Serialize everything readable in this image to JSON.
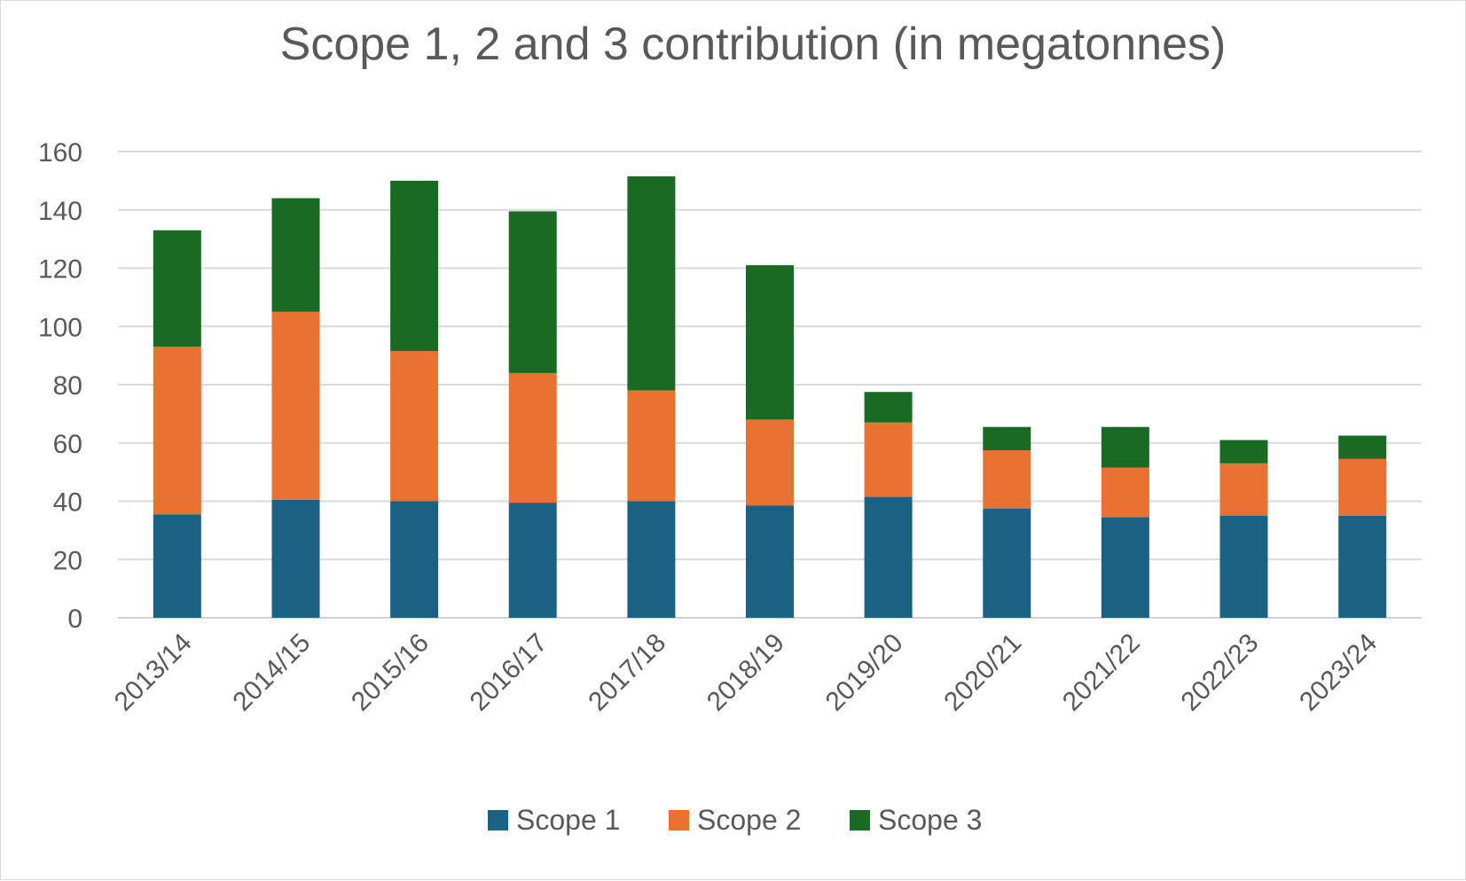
{
  "chart_data": {
    "type": "bar",
    "stacked": true,
    "title": "Scope 1, 2 and 3 contribution (in megatonnes)",
    "xlabel": "",
    "ylabel": "",
    "ylim": [
      0,
      160
    ],
    "yticks": [
      0,
      20,
      40,
      60,
      80,
      100,
      120,
      140,
      160
    ],
    "grid": true,
    "legend_position": "bottom",
    "categories": [
      "2013/14",
      "2014/15",
      "2015/16",
      "2016/17",
      "2017/18",
      "2018/19",
      "2019/20",
      "2020/21",
      "2021/22",
      "2022/23",
      "2023/24"
    ],
    "series": [
      {
        "name": "Scope 1",
        "color": "#1a6184",
        "values": [
          35.5,
          40.5,
          40.0,
          39.5,
          40.0,
          38.5,
          41.5,
          37.5,
          34.5,
          35.0,
          35.0
        ]
      },
      {
        "name": "Scope 2",
        "color": "#e97132",
        "values": [
          57.5,
          64.5,
          51.5,
          44.5,
          38.0,
          29.5,
          25.5,
          20.0,
          17.0,
          18.0,
          19.5
        ]
      },
      {
        "name": "Scope 3",
        "color": "#196b24",
        "values": [
          40.0,
          39.0,
          58.5,
          55.5,
          73.5,
          53.0,
          10.5,
          8.0,
          14.0,
          8.0,
          8.0
        ]
      }
    ]
  }
}
